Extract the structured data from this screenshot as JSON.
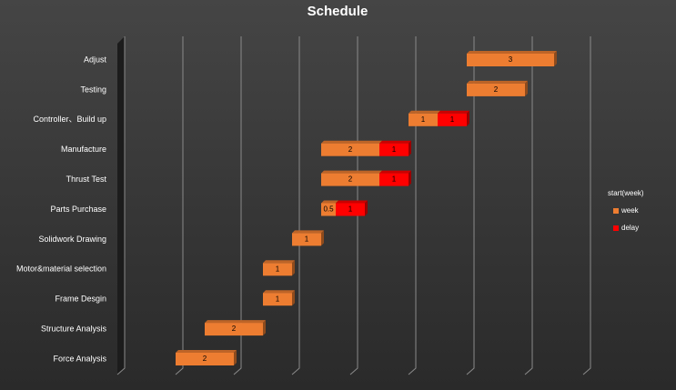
{
  "chart_data": {
    "type": "gantt",
    "title": "Schedule",
    "categories": [
      "Force Analysis",
      "Structure Analysis",
      "Frame Desgin",
      "Motor&material selection",
      "Solidwork Drawing",
      "Parts Purchase",
      "Thrust Test",
      "Manufacture",
      "Controller、Build up",
      "Testing",
      "Adjust"
    ],
    "series": [
      {
        "name": "start(week)",
        "color": "none",
        "values": [
          2,
          3,
          5,
          5,
          6,
          7,
          7,
          7,
          10,
          12,
          12
        ]
      },
      {
        "name": "week",
        "color": "#ed7d31",
        "values": [
          2,
          2,
          1,
          1,
          1,
          0.5,
          2,
          2,
          1,
          2,
          3
        ]
      },
      {
        "name": "delay",
        "color": "#ff0000",
        "values": [
          null,
          null,
          null,
          null,
          null,
          1,
          1,
          1,
          1,
          null,
          null
        ]
      }
    ],
    "xlim": [
      0,
      18
    ],
    "xticks": [
      0,
      2,
      4,
      6,
      8,
      10,
      12,
      14,
      16
    ],
    "grid": true,
    "legend": "right"
  }
}
